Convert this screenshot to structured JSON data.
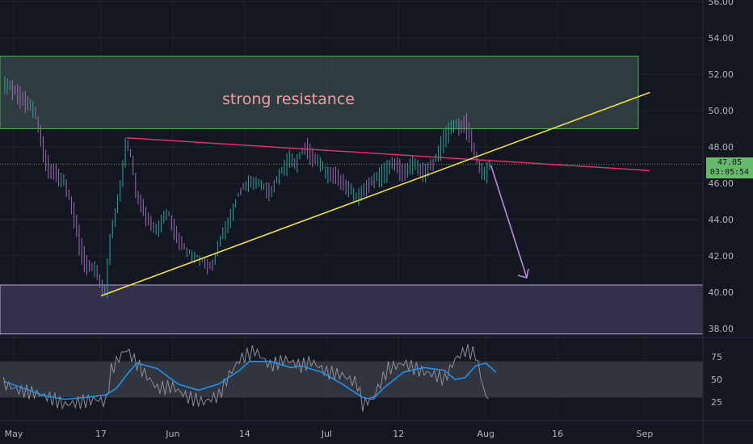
{
  "chart_data": {
    "type": "line",
    "title": "",
    "colors": {
      "background": "#131722",
      "grid": "#2a2e39",
      "text": "#b2b5be",
      "up": "#26a69a",
      "down": "#9c6bb2",
      "resistance_fill": "#3a4a4a",
      "resistance_border": "#4caf50",
      "support_fill": "#3a3550",
      "support_border": "#b8a9d9",
      "trend_support": "#f0e040",
      "trend_resistance": "#e0306a",
      "projection": "#b98ad9",
      "rsi_line": "#2196f3",
      "rsi_signal": "#8a8f9a",
      "rsi_band": "#3a3d48",
      "price_label": "#66bb6a"
    },
    "price_axis": {
      "ticks": [
        "56.00",
        "54.00",
        "52.00",
        "50.00",
        "48.00",
        "46.00",
        "44.00",
        "42.00",
        "40.00",
        "38.00"
      ],
      "ylim": [
        37.5,
        56
      ]
    },
    "rsi_axis": {
      "ticks": [
        "75",
        "50",
        "25"
      ],
      "ylim": [
        10,
        92
      ]
    },
    "x_axis": {
      "ticks": [
        "May",
        "17",
        "Jun",
        "14",
        "Jul",
        "12",
        "Aug",
        "16",
        "Sep"
      ],
      "tick_days": [
        0,
        17,
        31,
        45,
        61,
        75,
        92,
        106,
        123
      ]
    },
    "current_price": {
      "value": "47.05",
      "countdown": "03:05:54"
    },
    "annotations": {
      "resistance_label": "strong resistance",
      "resistance_zone": [
        49.0,
        53.0
      ],
      "support_zone": [
        37.7,
        40.4
      ]
    },
    "trendlines": [
      {
        "name": "ascending-support",
        "points": [
          [
            17,
            39.8
          ],
          [
            124,
            51.0
          ]
        ]
      },
      {
        "name": "descending-resistance",
        "points": [
          [
            22,
            48.5
          ],
          [
            124,
            46.7
          ]
        ]
      },
      {
        "name": "projection-arrow",
        "points": [
          [
            93,
            47.0
          ],
          [
            100,
            40.8
          ]
        ]
      }
    ],
    "series": [
      {
        "name": "",
        "x": [
          -2,
          0,
          2,
          4,
          5,
          6,
          7,
          8,
          10,
          12,
          13,
          14,
          15,
          16,
          17,
          18,
          19,
          20,
          21,
          22,
          23,
          24,
          26,
          28,
          30,
          32,
          34,
          36,
          38,
          39,
          40,
          42,
          44,
          46,
          48,
          50,
          52,
          54,
          55,
          56,
          57,
          58,
          60,
          61,
          62,
          64,
          66,
          67,
          68,
          70,
          72,
          74,
          76,
          78,
          80,
          82,
          84,
          86,
          87,
          88,
          89,
          90,
          91,
          92,
          93
        ],
        "values": [
          51.5,
          51.0,
          50.5,
          50.0,
          49.0,
          47.5,
          46.5,
          46.5,
          46.0,
          44.0,
          42.5,
          41.5,
          41.2,
          41.3,
          40.5,
          40.0,
          43.0,
          44.5,
          46.0,
          48.2,
          47.5,
          45.5,
          44.0,
          43.5,
          44.5,
          43.0,
          42.3,
          42.0,
          41.5,
          41.7,
          42.8,
          44.0,
          45.5,
          46.2,
          46.0,
          45.5,
          46.5,
          47.5,
          47.0,
          47.5,
          48.0,
          47.5,
          47.0,
          46.5,
          46.5,
          46.0,
          45.5,
          45.0,
          45.5,
          46.0,
          46.5,
          47.0,
          46.5,
          47.0,
          46.5,
          47.0,
          48.5,
          49.2,
          49.0,
          49.3,
          48.5,
          47.5,
          46.8,
          46.5,
          47.05
        ]
      },
      {
        "name": "",
        "x": [
          -2,
          1,
          4,
          7,
          10,
          13,
          16,
          18,
          19,
          21,
          22,
          25,
          28,
          31,
          34,
          37,
          40,
          42,
          44,
          47,
          50,
          53,
          56,
          58,
          61,
          64,
          67,
          68,
          70,
          73,
          76,
          79,
          82,
          84,
          86,
          88,
          90,
          92,
          93
        ],
        "values": [
          45,
          38,
          35,
          30,
          22,
          25,
          28,
          25,
          60,
          78,
          83,
          60,
          40,
          42,
          30,
          25,
          32,
          55,
          72,
          82,
          65,
          72,
          65,
          70,
          58,
          55,
          45,
          22,
          30,
          62,
          68,
          60,
          55,
          50,
          72,
          82,
          78,
          30,
          35
        ]
      },
      {
        "name": "",
        "x": [
          -2,
          2,
          6,
          10,
          14,
          18,
          20,
          22,
          24,
          28,
          32,
          36,
          40,
          44,
          46,
          50,
          54,
          56,
          60,
          64,
          68,
          70,
          72,
          76,
          80,
          84,
          86,
          88,
          90,
          92,
          94
        ],
        "values": [
          48,
          40,
          32,
          28,
          30,
          33,
          40,
          55,
          68,
          62,
          45,
          38,
          45,
          60,
          70,
          70,
          63,
          65,
          58,
          45,
          30,
          28,
          40,
          58,
          63,
          60,
          50,
          52,
          65,
          68,
          58
        ]
      }
    ]
  }
}
